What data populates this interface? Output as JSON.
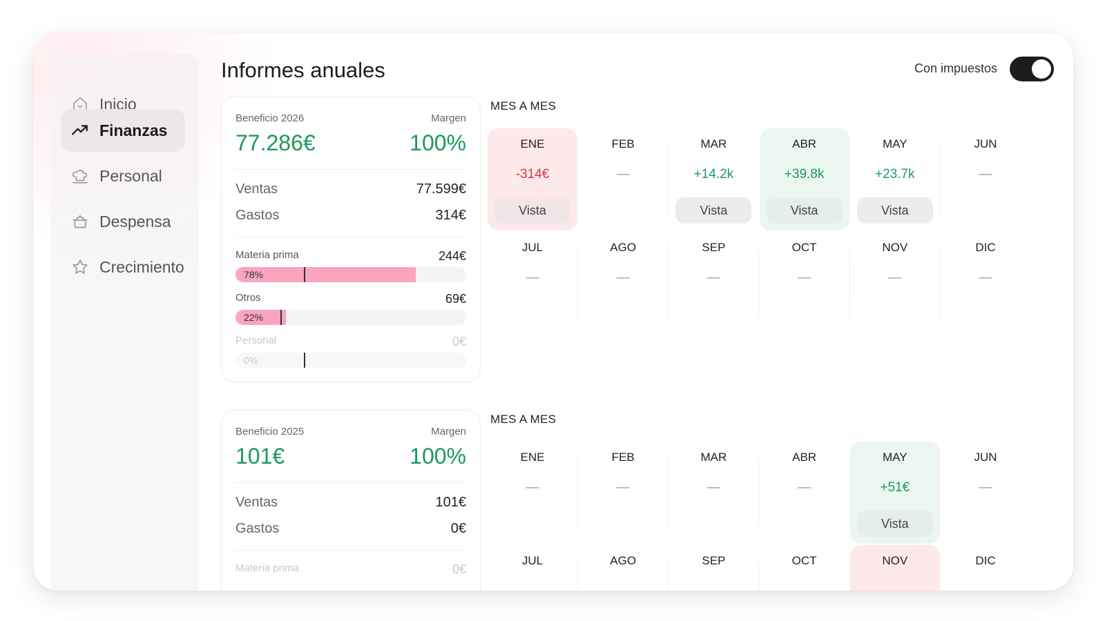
{
  "sidebar": {
    "items": [
      {
        "label": "Inicio",
        "icon": "home-icon"
      },
      {
        "label": "Finanzas",
        "icon": "trending-up-icon"
      },
      {
        "label": "Personal",
        "icon": "chef-hat-icon"
      },
      {
        "label": "Despensa",
        "icon": "pot-icon"
      },
      {
        "label": "Crecimiento",
        "icon": "star-icon"
      }
    ],
    "active": "Finanzas"
  },
  "header": {
    "title": "Informes anuales",
    "toggle_label": "Con impuestos",
    "toggle_on": true
  },
  "colors": {
    "positive": "#1a9a5b",
    "negative": "#d63b3b",
    "bar_fill": "#f9a5bd",
    "highlight_red": "#fde8ea",
    "highlight_green": "#eaf6ef"
  },
  "reports": [
    {
      "title": "Beneficio 2026",
      "margin_label": "Margen",
      "profit": "77.286€",
      "margin": "100%",
      "sales_label": "Ventas",
      "sales": "77.599€",
      "expenses_label": "Gastos",
      "expenses": "314€",
      "categories": [
        {
          "label": "Materia prima",
          "value": "244€",
          "pct_label": "78%",
          "fraction": 0.78
        },
        {
          "label": "Otros",
          "value": "69€",
          "pct_label": "22%",
          "fraction": 0.22
        },
        {
          "label": "Personal",
          "value": "0€",
          "pct_label": "0%",
          "fraction": 0
        }
      ],
      "section_label": "MES A MES",
      "months": [
        {
          "name": "ENE",
          "value": "-314€",
          "trend": "neg",
          "button": "Vista"
        },
        {
          "name": "FEB",
          "value": "—",
          "trend": "none"
        },
        {
          "name": "MAR",
          "value": "+14.2k",
          "trend": "pos",
          "button": "Vista"
        },
        {
          "name": "ABR",
          "value": "+39.8k",
          "trend": "pos",
          "button": "Vista",
          "highlight": "green"
        },
        {
          "name": "MAY",
          "value": "+23.7k",
          "trend": "pos",
          "button": "Vista"
        },
        {
          "name": "JUN",
          "value": "—",
          "trend": "none"
        },
        {
          "name": "JUL",
          "value": "—",
          "trend": "none"
        },
        {
          "name": "AGO",
          "value": "—",
          "trend": "none"
        },
        {
          "name": "SEP",
          "value": "—",
          "trend": "none"
        },
        {
          "name": "OCT",
          "value": "—",
          "trend": "none"
        },
        {
          "name": "NOV",
          "value": "—",
          "trend": "none"
        },
        {
          "name": "DIC",
          "value": "—",
          "trend": "none"
        }
      ]
    },
    {
      "title": "Beneficio 2025",
      "margin_label": "Margen",
      "profit": "101€",
      "margin": "100%",
      "sales_label": "Ventas",
      "sales": "101€",
      "expenses_label": "Gastos",
      "expenses": "0€",
      "categories": [
        {
          "label": "Materia prima",
          "value": "0€"
        }
      ],
      "section_label": "MES A MES",
      "months": [
        {
          "name": "ENE",
          "value": "—",
          "trend": "none"
        },
        {
          "name": "FEB",
          "value": "—",
          "trend": "none"
        },
        {
          "name": "MAR",
          "value": "—",
          "trend": "none"
        },
        {
          "name": "ABR",
          "value": "—",
          "trend": "none"
        },
        {
          "name": "MAY",
          "value": "+51€",
          "trend": "pos",
          "button": "Vista",
          "highlight": "green"
        },
        {
          "name": "JUN",
          "value": "—",
          "trend": "none"
        },
        {
          "name": "JUL",
          "value": "",
          "trend": "none"
        },
        {
          "name": "AGO",
          "value": "",
          "trend": "none"
        },
        {
          "name": "SEP",
          "value": "",
          "trend": "none"
        },
        {
          "name": "OCT",
          "value": "",
          "trend": "none"
        },
        {
          "name": "NOV",
          "value": "",
          "trend": "none",
          "highlight": "red"
        },
        {
          "name": "DIC",
          "value": "",
          "trend": "none"
        }
      ]
    }
  ]
}
